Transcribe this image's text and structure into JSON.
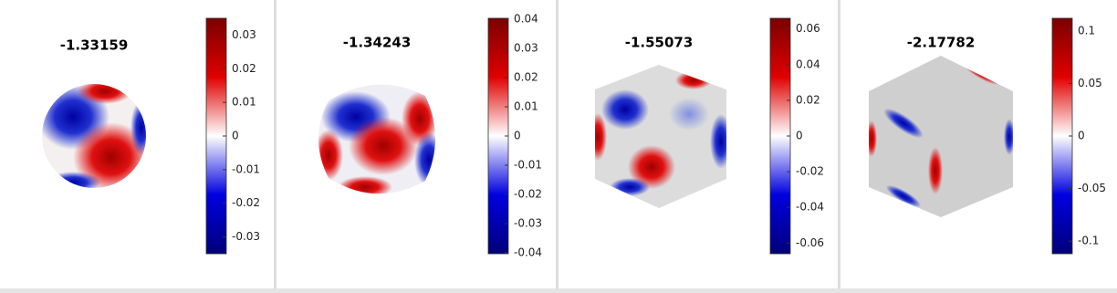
{
  "panels": [
    {
      "title": "-1.33159",
      "clim": [
        -0.035,
        0.035
      ],
      "ticks": [
        0.03,
        0.02,
        0.01,
        0,
        -0.01,
        -0.02,
        -0.03
      ]
    },
    {
      "title": "-1.34243",
      "clim": [
        -0.0403,
        0.0403
      ],
      "ticks": [
        0.04,
        0.03,
        0.02,
        0.01,
        0,
        -0.01,
        -0.02,
        -0.03,
        -0.04
      ]
    },
    {
      "title": "-1.55073",
      "clim": [
        -0.066,
        0.066
      ],
      "ticks": [
        0.06,
        0.04,
        0.02,
        0,
        -0.02,
        -0.04,
        -0.06
      ]
    },
    {
      "title": "-2.17782",
      "clim": [
        -0.112,
        0.112
      ],
      "ticks": [
        0.1,
        0.05,
        0,
        -0.05,
        -0.1
      ]
    }
  ]
}
